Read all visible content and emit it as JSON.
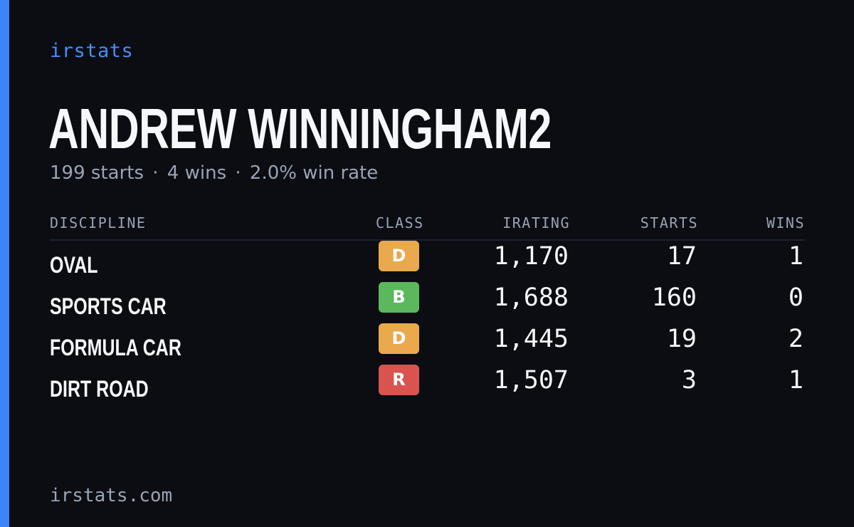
{
  "brand": "irstats",
  "driver": {
    "name": "ANDREW WINNINGHAM2"
  },
  "summary": {
    "starts": "199 starts",
    "wins": "4 wins",
    "win_rate": "2.0% win rate",
    "separator": "·"
  },
  "table": {
    "headers": {
      "discipline": "DISCIPLINE",
      "class": "CLASS",
      "irating": "IRATING",
      "starts": "STARTS",
      "wins": "WINS"
    },
    "rows": [
      {
        "discipline": "OVAL",
        "class": "D",
        "class_color": "#e9a94c",
        "irating": "1,170",
        "starts": "17",
        "wins": "1"
      },
      {
        "discipline": "SPORTS CAR",
        "class": "B",
        "class_color": "#5cb85c",
        "irating": "1,688",
        "starts": "160",
        "wins": "0"
      },
      {
        "discipline": "FORMULA CAR",
        "class": "D",
        "class_color": "#e9a94c",
        "irating": "1,445",
        "starts": "19",
        "wins": "2"
      },
      {
        "discipline": "DIRT ROAD",
        "class": "R",
        "class_color": "#d9534f",
        "irating": "1,507",
        "starts": "3",
        "wins": "1"
      }
    ]
  },
  "footer": "irstats.com",
  "colors": {
    "accent": "#3f83f8",
    "background": "#0b0d13"
  }
}
